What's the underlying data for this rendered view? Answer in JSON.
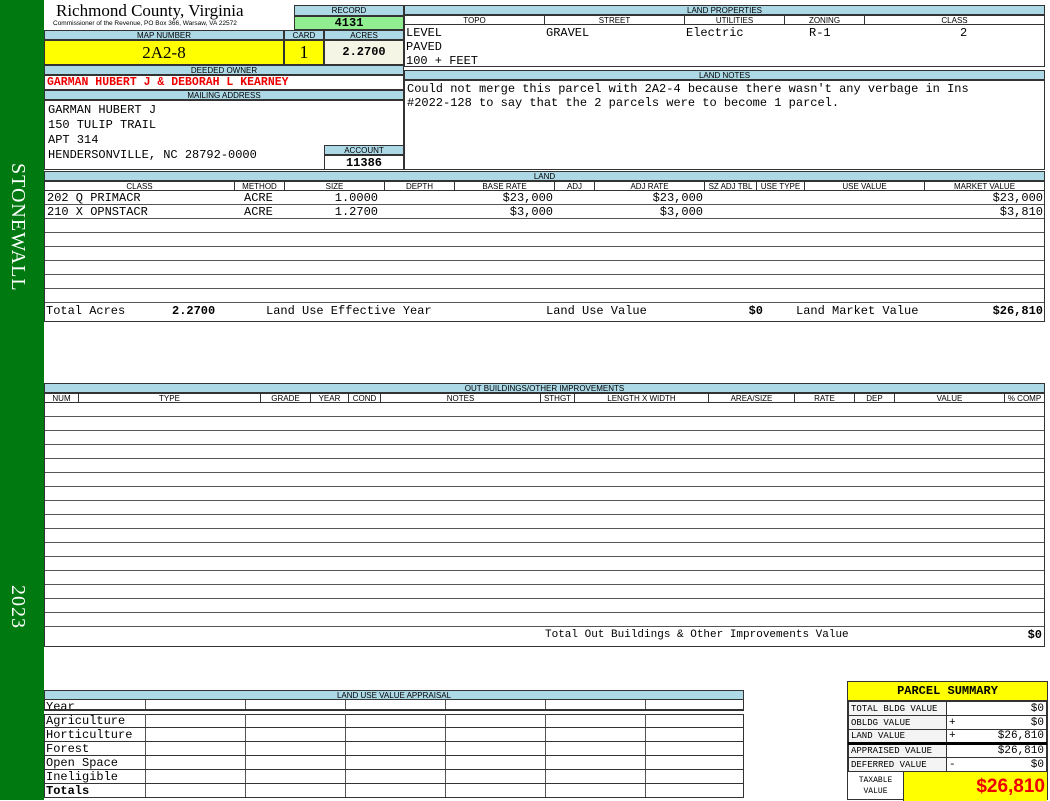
{
  "sidebar": {
    "district": "STONEWALL",
    "year": "2023",
    "color": "#007a10"
  },
  "header": {
    "county": "Richmond County, Virginia",
    "subtitle": "Commissioner of the Revenue, PO Box 366, Warsaw, VA 22572"
  },
  "record": {
    "label": "RECORD",
    "value": "4131"
  },
  "map": {
    "label": "MAP NUMBER",
    "value": "2A2-8"
  },
  "card": {
    "label": "CARD",
    "value": "1"
  },
  "acres": {
    "label": "ACRES",
    "value": "2.2700"
  },
  "owner": {
    "label": "DEEDED OWNER",
    "value": "GARMAN HUBERT J & DEBORAH L KEARNEY"
  },
  "mailing": {
    "label": "MAILING ADDRESS",
    "lines": [
      "GARMAN HUBERT J",
      "150 TULIP TRAIL",
      "APT 314",
      "HENDERSONVILLE, NC 28792-0000"
    ]
  },
  "account": {
    "label": "ACCOUNT",
    "value": "11386"
  },
  "land_properties": {
    "label": "LAND PROPERTIES",
    "columns": [
      "TOPO",
      "STREET",
      "UTILITIES",
      "ZONING",
      "CLASS"
    ],
    "topo": [
      "LEVEL",
      "PAVED",
      "100 + FEET"
    ],
    "street": "GRAVEL",
    "utilities": "Electric",
    "zoning": "R-1",
    "class": "2"
  },
  "land_notes": {
    "label": "LAND NOTES",
    "text": "Could not merge this parcel with 2A2-4 because there wasn't any verbage in Ins\n#2022-128 to say that the 2 parcels were to become 1 parcel."
  },
  "land": {
    "label": "LAND",
    "columns": [
      "CLASS",
      "METHOD",
      "SIZE",
      "DEPTH",
      "BASE RATE",
      "ADJ",
      "ADJ RATE",
      "SZ ADJ TBL",
      "USE TYPE",
      "USE VALUE",
      "MARKET VALUE"
    ],
    "rows": [
      [
        "202 Q PRIMACR",
        "ACRE",
        "1.0000",
        "",
        "$23,000",
        "",
        "$23,000",
        "",
        "",
        "",
        "$23,000"
      ],
      [
        "210 X OPNSTACR",
        "ACRE",
        "1.2700",
        "",
        "$3,000",
        "",
        "$3,000",
        "",
        "",
        "",
        "$3,810"
      ]
    ],
    "totals": {
      "acres_label": "Total Acres",
      "acres": "2.2700",
      "eff_year_label": "Land Use Effective Year",
      "use_value_label": "Land Use Value",
      "use_value": "$0",
      "market_label": "Land Market Value",
      "market": "$26,810"
    }
  },
  "outbuildings": {
    "label": "OUT BUILDINGS/OTHER IMPROVEMENTS",
    "columns": [
      "NUM",
      "TYPE",
      "GRADE",
      "YEAR",
      "COND",
      "NOTES",
      "STHGT",
      "LENGTH X WIDTH",
      "AREA/SIZE",
      "RATE",
      "DEP",
      "VALUE",
      "% COMP"
    ],
    "total_label": "Total Out Buildings & Other Improvements Value",
    "total": "$0"
  },
  "land_use_appraisal": {
    "label": "LAND USE VALUE APPRAISAL",
    "year_label": "Year",
    "rows": [
      "Agriculture",
      "Horticulture",
      "Forest",
      "Open Space",
      "Ineligible"
    ],
    "totals_label": "Totals"
  },
  "parcel_summary": {
    "title": "PARCEL SUMMARY",
    "rows": [
      {
        "label": "TOTAL BLDG VALUE",
        "op": "",
        "value": "$0"
      },
      {
        "label": "OBLDG VALUE",
        "op": "+",
        "value": "$0"
      },
      {
        "label": "LAND VALUE",
        "op": "+",
        "value": "$26,810"
      },
      {
        "label": "APPRAISED VALUE",
        "op": "",
        "value": "$26,810"
      },
      {
        "label": "DEFERRED VALUE",
        "op": "-",
        "value": "$0"
      }
    ],
    "taxable_label": "TAXABLE VALUE",
    "taxable": "$26,810"
  }
}
